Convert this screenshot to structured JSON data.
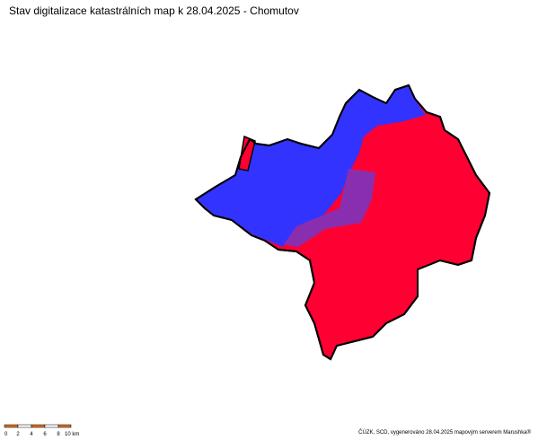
{
  "header": {
    "title": "Stav digitalizace katastrálních map k 28.04.2025 - Chomutov"
  },
  "scale_bar": {
    "labels": [
      "0",
      "2",
      "4",
      "6",
      "8",
      "10 km"
    ]
  },
  "footer": {
    "credit": "ČÚZK, SCD, vygenerováno 28.04.2025 mapovým serverem Marushka®"
  }
}
